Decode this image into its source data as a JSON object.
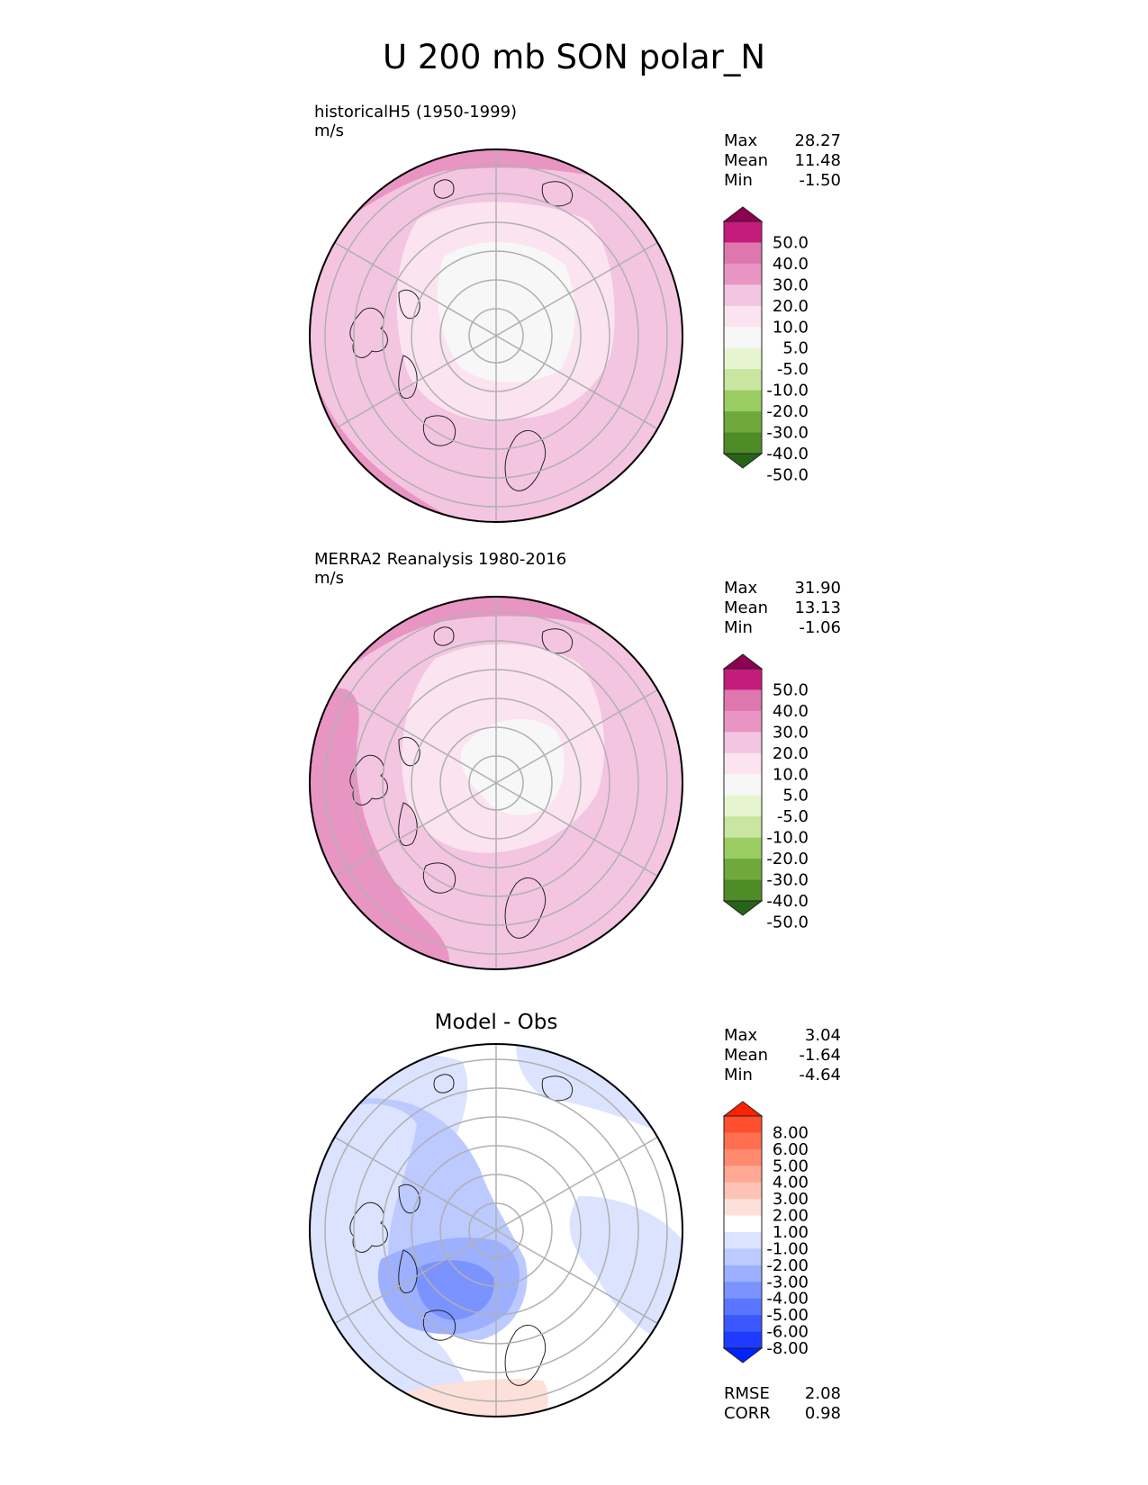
{
  "figure": {
    "title": "U 200 mb SON polar_N"
  },
  "panels": [
    {
      "title_line1": "historicalH5 (1950-1999)",
      "title_line2": "m/s",
      "stats": {
        "max_label": "Max",
        "max": "28.27",
        "mean_label": "Mean",
        "mean": "11.48",
        "min_label": "Min",
        "min": "-1.50"
      },
      "colorbar": {
        "labels": [
          "50.0",
          "40.0",
          "30.0",
          "20.0",
          "10.0",
          "5.0",
          "-5.0",
          "-10.0",
          "-20.0",
          "-30.0",
          "-40.0",
          "-50.0"
        ],
        "colors": [
          "#8e0152",
          "#c51b7d",
          "#de77ae",
          "#e995c4",
          "#f3c5e0",
          "#fbe3f0",
          "#f7f7f7",
          "#e6f5d0",
          "#c8e6a0",
          "#9ccd63",
          "#6fa93c",
          "#4d8c26",
          "#276419"
        ]
      }
    },
    {
      "title_line1": "MERRA2 Reanalysis 1980-2016",
      "title_line2": "m/s",
      "stats": {
        "max_label": "Max",
        "max": "31.90",
        "mean_label": "Mean",
        "mean": "13.13",
        "min_label": "Min",
        "min": "-1.06"
      },
      "colorbar": {
        "labels": [
          "50.0",
          "40.0",
          "30.0",
          "20.0",
          "10.0",
          "5.0",
          "-5.0",
          "-10.0",
          "-20.0",
          "-30.0",
          "-40.0",
          "-50.0"
        ],
        "colors": [
          "#8e0152",
          "#c51b7d",
          "#de77ae",
          "#e995c4",
          "#f3c5e0",
          "#fbe3f0",
          "#f7f7f7",
          "#e6f5d0",
          "#c8e6a0",
          "#9ccd63",
          "#6fa93c",
          "#4d8c26",
          "#276419"
        ]
      }
    },
    {
      "title": "Model - Obs",
      "stats": {
        "max_label": "Max",
        "max": "3.04",
        "mean_label": "Mean",
        "mean": "-1.64",
        "min_label": "Min",
        "min": "-4.64"
      },
      "colorbar": {
        "labels": [
          "8.00",
          "6.00",
          "5.00",
          "4.00",
          "3.00",
          "2.00",
          "1.00",
          "-1.00",
          "-2.00",
          "-3.00",
          "-4.00",
          "-5.00",
          "-6.00",
          "-8.00"
        ],
        "colors": [
          "#ff2200",
          "#ff4f2e",
          "#ff6e4e",
          "#ff8a70",
          "#ffa893",
          "#ffc3b5",
          "#fde0da",
          "#ffffff",
          "#dbe3ff",
          "#bccaff",
          "#9cb0ff",
          "#7b93ff",
          "#5a76ff",
          "#3b58ff",
          "#1e3bff",
          "#0022ff"
        ]
      },
      "extra_stats": {
        "rmse_label": "RMSE",
        "rmse": "2.08",
        "corr_label": "CORR",
        "corr": "0.98"
      }
    }
  ],
  "colors": {
    "map_outline": "#000000",
    "grid": "#b0b0b0",
    "coast": "#222222"
  }
}
